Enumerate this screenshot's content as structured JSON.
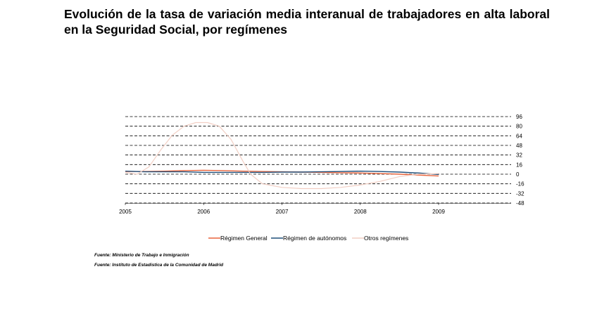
{
  "title": "Evolución de la tasa de variación media interanual de trabajadores en alta laboral en la Seguridad Social, por  regímenes",
  "sources": [
    "Fuente: Ministerio de Trabajo e Inmigración",
    "Fuente: Instituto de Estadística de la Comunidad de Madrid"
  ],
  "chart_data": {
    "type": "line",
    "title": "Evolución de la tasa de variación media interanual de trabajadores en alta laboral en la Seguridad Social, por  regímenes",
    "xlabel": "",
    "ylabel": "",
    "x_ticks": [
      "2005",
      "2006",
      "2007",
      "2008",
      "2009"
    ],
    "y_ticks": [
      "96",
      "80",
      "64",
      "48",
      "32",
      "16",
      "0",
      "-16",
      "-32",
      "-48"
    ],
    "ylim": [
      -48,
      96
    ],
    "xlim": [
      2005,
      2009.92
    ],
    "grid": true,
    "legend_position": "bottom",
    "series": [
      {
        "name": "Régimen General",
        "color": "#e8643c",
        "x": [
          2005.0,
          2005.25,
          2005.5,
          2005.75,
          2006.0,
          2006.25,
          2006.5,
          2006.75,
          2007.0,
          2007.25,
          2007.5,
          2007.75,
          2008.0,
          2008.25,
          2008.5,
          2008.75,
          2009.0
        ],
        "y": [
          4.5,
          4.5,
          5.0,
          6.0,
          6.5,
          6.0,
          5.0,
          4.5,
          4.0,
          3.5,
          3.0,
          2.5,
          2.0,
          1.0,
          0.0,
          -1.5,
          -3.0
        ]
      },
      {
        "name": "Régimen de autónomos",
        "color": "#1f4e79",
        "x": [
          2005.0,
          2005.25,
          2005.5,
          2005.75,
          2006.0,
          2006.25,
          2006.5,
          2006.75,
          2007.0,
          2007.25,
          2007.5,
          2007.75,
          2008.0,
          2008.25,
          2008.5,
          2008.75,
          2009.0
        ],
        "y": [
          5.0,
          4.0,
          4.0,
          4.0,
          3.0,
          3.0,
          3.0,
          3.0,
          3.5,
          3.5,
          4.0,
          4.5,
          5.0,
          4.5,
          3.5,
          2.0,
          -0.5
        ]
      },
      {
        "name": "Otros regímenes",
        "color": "#f2cfc4",
        "x": [
          2005.0,
          2005.15,
          2005.3,
          2005.45,
          2005.6,
          2005.75,
          2005.9,
          2006.05,
          2006.2,
          2006.35,
          2006.5,
          2006.6,
          2006.75,
          2007.0,
          2007.25,
          2007.5,
          2007.75,
          2008.0,
          2008.25,
          2008.5,
          2008.75,
          2009.0
        ],
        "y": [
          3,
          0,
          12,
          40,
          65,
          80,
          86,
          86,
          80,
          58,
          22,
          0,
          -16,
          -22,
          -24,
          -24,
          -22,
          -18,
          -12,
          -4,
          0,
          1
        ]
      }
    ]
  }
}
